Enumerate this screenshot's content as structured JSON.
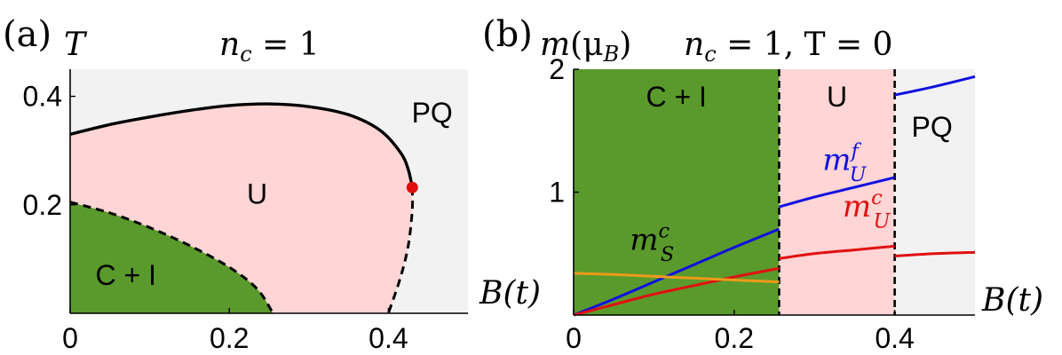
{
  "chart_data": [
    {
      "type": "area",
      "panel_label": "(a)",
      "title": "n_c = 1",
      "title_main": "n",
      "title_sub": "c",
      "title_rest": " = 1",
      "ylabel": "T",
      "xlabel": "B(t)",
      "xlim": [
        0,
        0.5
      ],
      "ylim": [
        0,
        0.45
      ],
      "xticks": [
        {
          "value": 0,
          "label": "0"
        },
        {
          "value": 0.2,
          "label": "0.2"
        },
        {
          "value": 0.4,
          "label": "0.4"
        }
      ],
      "yticks": [
        {
          "value": 0.2,
          "label": "0.2"
        },
        {
          "value": 0.4,
          "label": "0.4"
        }
      ],
      "regions": [
        {
          "label": "PQ",
          "color": "#f2f2f2",
          "label_at": [
            0.455,
            0.37
          ]
        },
        {
          "label": "U",
          "color": "#ffd5d5",
          "label_at": [
            0.235,
            0.22
          ]
        },
        {
          "label": "C + I",
          "color": "#5a9a2c",
          "label_at": [
            0.07,
            0.07
          ]
        }
      ],
      "boundaries": [
        {
          "name": "U-PQ transition (solid)",
          "style": "solid",
          "points": [
            [
              0,
              0.33
            ],
            [
              0.05,
              0.348
            ],
            [
              0.1,
              0.362
            ],
            [
              0.15,
              0.374
            ],
            [
              0.2,
              0.383
            ],
            [
              0.25,
              0.386
            ],
            [
              0.3,
              0.381
            ],
            [
              0.35,
              0.366
            ],
            [
              0.39,
              0.337
            ],
            [
              0.415,
              0.297
            ],
            [
              0.425,
              0.265
            ],
            [
              0.43,
              0.232
            ]
          ]
        },
        {
          "name": "U-PQ transition (dashed)",
          "style": "dashed",
          "points": [
            [
              0.43,
              0.232
            ],
            [
              0.43,
              0.19
            ],
            [
              0.425,
              0.125
            ],
            [
              0.415,
              0.065
            ],
            [
              0.4,
              0
            ]
          ]
        },
        {
          "name": "C+I-U transition (dashed)",
          "style": "dashed",
          "points": [
            [
              0,
              0.205
            ],
            [
              0.05,
              0.185
            ],
            [
              0.1,
              0.158
            ],
            [
              0.15,
              0.125
            ],
            [
              0.2,
              0.085
            ],
            [
              0.235,
              0.045
            ],
            [
              0.255,
              0
            ]
          ]
        }
      ],
      "critical_point": {
        "x": 0.43,
        "y": 0.232,
        "color": "#e01010"
      }
    },
    {
      "type": "line",
      "panel_label": "(b)",
      "title": "n_c = 1, T = 0",
      "title_main": "n",
      "title_sub": "c",
      "title_rest": " = 1, T = 0",
      "ylabel_main": "m",
      "ylabel_rest": "(μ",
      "ylabel_sub": "B",
      "ylabel_end": ")",
      "xlabel": "B(t)",
      "xlim": [
        0,
        0.5
      ],
      "ylim": [
        0,
        2
      ],
      "xticks": [
        {
          "value": 0,
          "label": "0"
        },
        {
          "value": 0.2,
          "label": "0.2"
        },
        {
          "value": 0.4,
          "label": "0.4"
        }
      ],
      "yticks": [
        {
          "value": 1,
          "label": "1"
        },
        {
          "value": 2,
          "label": "2"
        }
      ],
      "regions": [
        {
          "label": "C + I",
          "x0": 0,
          "x1": 0.256,
          "color": "#5a9a2c"
        },
        {
          "label": "U",
          "x0": 0.256,
          "x1": 0.4,
          "color": "#ffd5d5"
        },
        {
          "label": "PQ",
          "x0": 0.4,
          "x1": 0.5,
          "color": "#f2f2f2"
        }
      ],
      "transitions": [
        0.256,
        0.4
      ],
      "series": [
        {
          "name": "m_U^f",
          "label_main": "m",
          "label_sup": "f",
          "label_sub": "U",
          "color": "#1010e0",
          "label_at": [
            0.31,
            1.18
          ],
          "segments": [
            [
              [
                0,
                0
              ],
              [
                0.05,
                0.13
              ],
              [
                0.1,
                0.27
              ],
              [
                0.15,
                0.41
              ],
              [
                0.2,
                0.55
              ],
              [
                0.256,
                0.7
              ]
            ],
            [
              [
                0.256,
                0.88
              ],
              [
                0.3,
                0.96
              ],
              [
                0.35,
                1.04
              ],
              [
                0.4,
                1.12
              ]
            ],
            [
              [
                0.4,
                1.79
              ],
              [
                0.45,
                1.86
              ],
              [
                0.5,
                1.94
              ]
            ]
          ]
        },
        {
          "name": "m_U^c",
          "label_main": "m",
          "label_sup": "c",
          "label_sub": "U",
          "color": "#e01010",
          "label_at": [
            0.335,
            0.8
          ],
          "segments": [
            [
              [
                0,
                0
              ],
              [
                0.05,
                0.085
              ],
              [
                0.1,
                0.17
              ],
              [
                0.15,
                0.24
              ],
              [
                0.2,
                0.31
              ],
              [
                0.256,
                0.38
              ]
            ],
            [
              [
                0.256,
                0.46
              ],
              [
                0.3,
                0.5
              ],
              [
                0.35,
                0.53
              ],
              [
                0.4,
                0.56
              ]
            ],
            [
              [
                0.4,
                0.48
              ],
              [
                0.45,
                0.5
              ],
              [
                0.5,
                0.51
              ]
            ]
          ]
        },
        {
          "name": "m_S^c",
          "label_main": "m",
          "label_sup": "c",
          "label_sub": "S",
          "color": "#ee9a1a",
          "label_at": [
            0.07,
            0.53
          ],
          "segments": [
            [
              [
                0,
                0.34
              ],
              [
                0.05,
                0.33
              ],
              [
                0.1,
                0.315
              ],
              [
                0.15,
                0.3
              ],
              [
                0.2,
                0.285
              ],
              [
                0.256,
                0.27
              ]
            ]
          ]
        }
      ]
    }
  ]
}
